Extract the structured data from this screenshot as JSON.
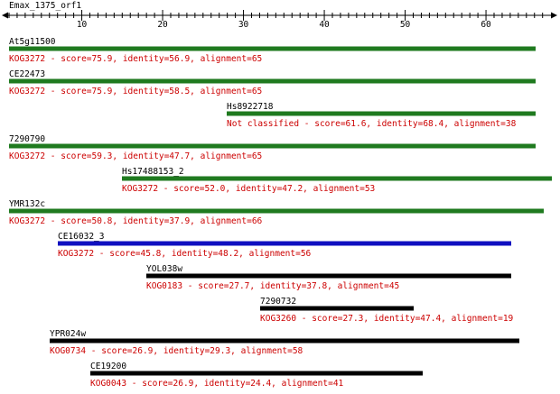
{
  "query": {
    "name": "Emax_1375_orf1",
    "axis_ticks": [
      "10",
      "20",
      "30",
      "40",
      "50",
      "60"
    ]
  },
  "colors": {
    "green": "#1f7a1f",
    "blue": "#1010c0",
    "black": "#000000",
    "label_text": "#000000",
    "info_text": "#cc0000"
  },
  "hits": [
    {
      "name": "At5g11500",
      "info": "KOG3272 - score=75.9, identity=56.9, alignment=65",
      "color": "green"
    },
    {
      "name": "CE22473",
      "info": "KOG3272 - score=75.9, identity=58.5, alignment=65",
      "color": "green"
    },
    {
      "name": "Hs8922718",
      "info": "Not classified - score=61.6, identity=68.4, alignment=38",
      "color": "green"
    },
    {
      "name": "7290790",
      "info": "KOG3272 - score=59.3, identity=47.7, alignment=65",
      "color": "green"
    },
    {
      "name": "Hs17488153_2",
      "info": "KOG3272 - score=52.0, identity=47.2, alignment=53",
      "color": "green"
    },
    {
      "name": "YMR132c",
      "info": "KOG3272 - score=50.8, identity=37.9, alignment=66",
      "color": "green"
    },
    {
      "name": "CE16032_3",
      "info": "KOG3272 - score=45.8, identity=48.2, alignment=56",
      "color": "blue"
    },
    {
      "name": "YOL038w",
      "info": "KOG0183 - score=27.7, identity=37.8, alignment=45",
      "color": "black"
    },
    {
      "name": "7290732",
      "info": "KOG3260 - score=27.3, identity=47.4, alignment=19",
      "color": "black"
    },
    {
      "name": "YPR024w",
      "info": "KOG0734 - score=26.9, identity=29.3, alignment=58",
      "color": "black"
    },
    {
      "name": "CE19200",
      "info": "KOG0043 - score=26.9, identity=24.4, alignment=41",
      "color": "black"
    }
  ]
}
